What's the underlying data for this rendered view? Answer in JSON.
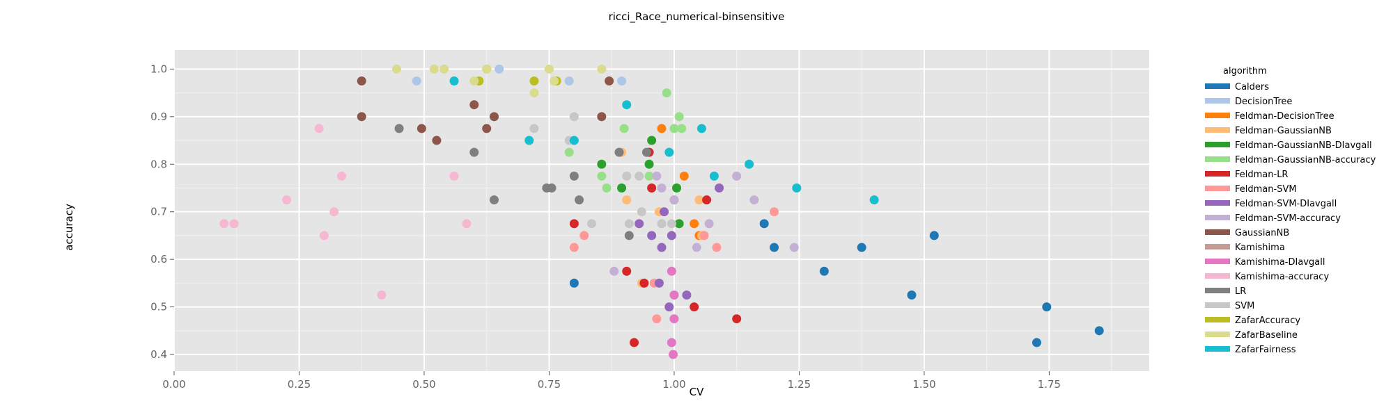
{
  "chart_data": {
    "type": "scatter",
    "title": "ricci_Race_numerical-binsensitive",
    "xlabel": "CV",
    "ylabel": "accuracy",
    "xlim": [
      0.0,
      1.95
    ],
    "ylim": [
      0.365,
      1.04
    ],
    "x_ticks": [
      "0.00",
      "0.25",
      "0.50",
      "0.75",
      "1.00",
      "1.25",
      "1.50",
      "1.75"
    ],
    "y_ticks": [
      "0.4",
      "0.5",
      "0.6",
      "0.7",
      "0.8",
      "0.9",
      "1.0"
    ],
    "grid": true,
    "legend_position": "right",
    "legend_title": "algorithm",
    "series": [
      {
        "name": "Calders",
        "color": "#1f77b4",
        "points": [
          [
            0.8,
            0.55
          ],
          [
            1.18,
            0.675
          ],
          [
            1.2,
            0.625
          ],
          [
            1.3,
            0.575
          ],
          [
            1.375,
            0.625
          ],
          [
            1.475,
            0.525
          ],
          [
            1.52,
            0.65
          ],
          [
            1.725,
            0.425
          ],
          [
            1.745,
            0.5
          ],
          [
            1.85,
            0.45
          ]
        ]
      },
      {
        "name": "DecisionTree",
        "color": "#aec7e8",
        "points": [
          [
            0.485,
            0.975
          ],
          [
            0.65,
            1.0
          ],
          [
            0.79,
            0.975
          ],
          [
            0.895,
            0.975
          ]
        ]
      },
      {
        "name": "Feldman-DecisionTree",
        "color": "#ff7f0e",
        "points": [
          [
            0.975,
            0.875
          ],
          [
            1.0,
            0.725
          ],
          [
            1.02,
            0.775
          ],
          [
            1.04,
            0.675
          ],
          [
            1.05,
            0.65
          ]
        ]
      },
      {
        "name": "Feldman-GaussianNB",
        "color": "#ffbb78",
        "points": [
          [
            0.895,
            0.825
          ],
          [
            0.905,
            0.725
          ],
          [
            0.935,
            0.55
          ],
          [
            0.97,
            0.7
          ],
          [
            1.05,
            0.725
          ],
          [
            1.055,
            0.65
          ]
        ]
      },
      {
        "name": "Feldman-GaussianNB-DIavgall",
        "color": "#2ca02c",
        "points": [
          [
            0.855,
            0.8
          ],
          [
            0.895,
            0.75
          ],
          [
            0.95,
            0.8
          ],
          [
            0.955,
            0.85
          ],
          [
            1.005,
            0.75
          ],
          [
            1.01,
            0.675
          ]
        ]
      },
      {
        "name": "Feldman-GaussianNB-accuracy",
        "color": "#98df8a",
        "points": [
          [
            0.79,
            0.825
          ],
          [
            0.855,
            0.775
          ],
          [
            0.865,
            0.75
          ],
          [
            0.9,
            0.875
          ],
          [
            0.95,
            0.775
          ],
          [
            0.985,
            0.95
          ],
          [
            1.0,
            0.875
          ],
          [
            1.01,
            0.9
          ],
          [
            1.015,
            0.875
          ]
        ]
      },
      {
        "name": "Feldman-LR",
        "color": "#d62728",
        "points": [
          [
            0.8,
            0.675
          ],
          [
            0.905,
            0.575
          ],
          [
            0.92,
            0.425
          ],
          [
            0.94,
            0.55
          ],
          [
            0.955,
            0.75
          ],
          [
            0.95,
            0.825
          ],
          [
            1.04,
            0.5
          ],
          [
            1.065,
            0.725
          ],
          [
            1.125,
            0.475
          ]
        ]
      },
      {
        "name": "Feldman-SVM",
        "color": "#ff9896",
        "points": [
          [
            0.8,
            0.625
          ],
          [
            0.82,
            0.65
          ],
          [
            0.96,
            0.55
          ],
          [
            0.965,
            0.475
          ],
          [
            1.06,
            0.65
          ],
          [
            1.085,
            0.625
          ],
          [
            1.2,
            0.7
          ]
        ]
      },
      {
        "name": "Feldman-SVM-DIavgall",
        "color": "#9467bd",
        "points": [
          [
            0.93,
            0.675
          ],
          [
            0.955,
            0.65
          ],
          [
            0.97,
            0.55
          ],
          [
            0.975,
            0.625
          ],
          [
            0.98,
            0.7
          ],
          [
            0.995,
            0.65
          ],
          [
            0.99,
            0.5
          ],
          [
            1.025,
            0.525
          ],
          [
            1.09,
            0.75
          ]
        ]
      },
      {
        "name": "Feldman-SVM-accuracy",
        "color": "#c5b0d5",
        "points": [
          [
            0.88,
            0.575
          ],
          [
            0.965,
            0.775
          ],
          [
            0.975,
            0.75
          ],
          [
            1.0,
            0.725
          ],
          [
            1.045,
            0.625
          ],
          [
            1.07,
            0.675
          ],
          [
            1.125,
            0.775
          ],
          [
            1.16,
            0.725
          ],
          [
            1.24,
            0.625
          ]
        ]
      },
      {
        "name": "GaussianNB",
        "color": "#8c564b",
        "points": [
          [
            0.375,
            0.975
          ],
          [
            0.375,
            0.9
          ],
          [
            0.495,
            0.875
          ],
          [
            0.525,
            0.85
          ],
          [
            0.6,
            0.925
          ],
          [
            0.625,
            0.875
          ],
          [
            0.64,
            0.9
          ],
          [
            0.855,
            0.9
          ],
          [
            0.87,
            0.975
          ]
        ]
      },
      {
        "name": "Kamishima",
        "color": "#c49c94",
        "points": []
      },
      {
        "name": "Kamishima-DIavgall",
        "color": "#e377c2",
        "points": [
          [
            0.995,
            0.575
          ],
          [
            1.0,
            0.525
          ],
          [
            1.0,
            0.475
          ],
          [
            0.995,
            0.425
          ],
          [
            0.998,
            0.4
          ]
        ]
      },
      {
        "name": "Kamishima-accuracy",
        "color": "#f7b6d2",
        "points": [
          [
            0.1,
            0.675
          ],
          [
            0.12,
            0.675
          ],
          [
            0.225,
            0.725
          ],
          [
            0.29,
            0.875
          ],
          [
            0.3,
            0.65
          ],
          [
            0.32,
            0.7
          ],
          [
            0.335,
            0.775
          ],
          [
            0.415,
            0.525
          ],
          [
            0.56,
            0.775
          ],
          [
            0.585,
            0.675
          ]
        ]
      },
      {
        "name": "LR",
        "color": "#7f7f7f",
        "points": [
          [
            0.45,
            0.875
          ],
          [
            0.6,
            0.825
          ],
          [
            0.64,
            0.725
          ],
          [
            0.745,
            0.75
          ],
          [
            0.755,
            0.75
          ],
          [
            0.8,
            0.775
          ],
          [
            0.81,
            0.725
          ],
          [
            0.89,
            0.825
          ],
          [
            0.91,
            0.65
          ],
          [
            0.945,
            0.825
          ]
        ]
      },
      {
        "name": "SVM",
        "color": "#c7c7c7",
        "points": [
          [
            0.72,
            0.875
          ],
          [
            0.79,
            0.85
          ],
          [
            0.8,
            0.9
          ],
          [
            0.835,
            0.675
          ],
          [
            0.905,
            0.775
          ],
          [
            0.91,
            0.675
          ],
          [
            0.93,
            0.775
          ],
          [
            0.935,
            0.7
          ],
          [
            0.975,
            0.675
          ],
          [
            0.995,
            0.675
          ]
        ]
      },
      {
        "name": "ZafarAccuracy",
        "color": "#bcbd22",
        "points": [
          [
            0.61,
            0.975
          ],
          [
            0.625,
            1.0
          ],
          [
            0.72,
            0.975
          ],
          [
            0.765,
            0.975
          ]
        ]
      },
      {
        "name": "ZafarBaseline",
        "color": "#dbdb8d",
        "points": [
          [
            0.445,
            1.0
          ],
          [
            0.52,
            1.0
          ],
          [
            0.54,
            1.0
          ],
          [
            0.6,
            0.975
          ],
          [
            0.625,
            1.0
          ],
          [
            0.72,
            0.95
          ],
          [
            0.75,
            1.0
          ],
          [
            0.76,
            0.975
          ],
          [
            0.855,
            1.0
          ]
        ]
      },
      {
        "name": "ZafarFairness",
        "color": "#17becf",
        "points": [
          [
            0.56,
            0.975
          ],
          [
            0.71,
            0.85
          ],
          [
            0.8,
            0.85
          ],
          [
            0.905,
            0.925
          ],
          [
            0.99,
            0.825
          ],
          [
            1.055,
            0.875
          ],
          [
            1.08,
            0.775
          ],
          [
            1.15,
            0.8
          ],
          [
            1.245,
            0.75
          ],
          [
            1.4,
            0.725
          ]
        ]
      }
    ]
  }
}
